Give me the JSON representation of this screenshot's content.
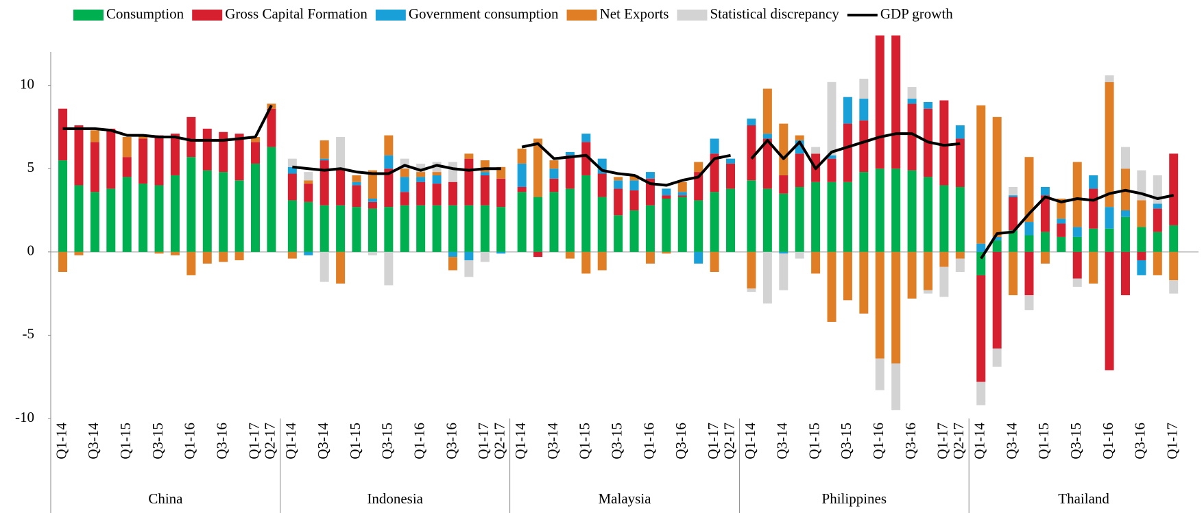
{
  "chart_data": {
    "type": "bar",
    "ylim": [
      -10,
      12
    ],
    "yticks": [
      -10,
      -5,
      0,
      5,
      10
    ],
    "groups": [
      {
        "name": "China",
        "categories": [
          "Q1-14",
          null,
          "Q3-14",
          null,
          "Q1-15",
          null,
          "Q3-15",
          null,
          "Q1-16",
          null,
          "Q3-16",
          null,
          "Q1-17",
          "Q2-17"
        ]
      },
      {
        "name": "Indonesia",
        "categories": [
          "Q1-14",
          null,
          "Q3-14",
          null,
          "Q1-15",
          null,
          "Q3-15",
          null,
          "Q1-16",
          null,
          "Q3-16",
          null,
          "Q1-17",
          "Q2-17"
        ]
      },
      {
        "name": "Malaysia",
        "categories": [
          "Q1-14",
          null,
          "Q3-14",
          null,
          "Q1-15",
          null,
          "Q3-15",
          null,
          "Q1-16",
          null,
          "Q3-16",
          null,
          "Q1-17",
          "Q2-17"
        ]
      },
      {
        "name": "Philippines",
        "categories": [
          "Q1-14",
          null,
          "Q3-14",
          null,
          "Q1-15",
          null,
          "Q3-15",
          null,
          "Q1-16",
          null,
          "Q3-16",
          null,
          "Q1-17",
          "Q2-17"
        ]
      },
      {
        "name": "Thailand",
        "categories": [
          "Q1-14",
          null,
          "Q3-14",
          null,
          "Q1-15",
          null,
          "Q3-15",
          null,
          "Q1-16",
          null,
          "Q3-16",
          null,
          "Q1-17"
        ]
      }
    ],
    "series": [
      {
        "name": "Consumption",
        "color": "#00b050",
        "values": [
          [
            5.5,
            4.0,
            3.6,
            3.8,
            4.5,
            4.1,
            4.0,
            4.6,
            5.7,
            4.9,
            4.8,
            4.3,
            5.3,
            6.3
          ],
          [
            3.1,
            3.0,
            2.8,
            2.8,
            2.7,
            2.6,
            2.7,
            2.8,
            2.8,
            2.8,
            2.8,
            2.8,
            2.8,
            2.7
          ],
          [
            3.6,
            3.3,
            3.6,
            3.8,
            4.6,
            3.3,
            2.2,
            2.5,
            2.8,
            3.2,
            3.3,
            3.1,
            3.6,
            3.8
          ],
          [
            4.3,
            3.8,
            3.5,
            3.9,
            4.2,
            4.2,
            4.2,
            4.8,
            5.0,
            5.0,
            4.9,
            4.5,
            4.0,
            3.9
          ],
          [
            -1.4,
            0.7,
            1.3,
            1.0,
            1.2,
            0.9,
            0.9,
            1.4,
            1.4,
            2.1,
            1.5,
            1.2,
            1.6
          ]
        ]
      },
      {
        "name": "Gross Capital Formation",
        "color": "#d7202f",
        "values": [
          [
            3.1,
            3.6,
            3.0,
            3.6,
            1.2,
            2.7,
            3.0,
            2.5,
            2.4,
            2.5,
            2.4,
            2.8,
            1.3,
            2.3
          ],
          [
            1.6,
            1.1,
            2.7,
            2.2,
            1.3,
            0.4,
            2.3,
            0.8,
            1.4,
            1.3,
            1.4,
            2.8,
            1.8,
            1.7
          ],
          [
            0.3,
            -0.3,
            0.8,
            2.0,
            2.0,
            1.4,
            1.6,
            1.2,
            1.6,
            0.2,
            0.1,
            1.7,
            2.3,
            1.5
          ],
          [
            3.3,
            3.0,
            1.1,
            2.0,
            1.7,
            1.4,
            3.5,
            3.1,
            8.0,
            8.0,
            4.0,
            4.1,
            5.1,
            2.9
          ],
          [
            -6.4,
            -5.8,
            2.0,
            -2.6,
            2.2,
            0.8,
            -1.6,
            2.4,
            -7.1,
            -2.6,
            -0.5,
            1.4,
            4.3
          ]
        ]
      },
      {
        "name": "Government consumption",
        "color": "#1aa0d8",
        "values": [
          [
            0,
            0,
            0,
            0,
            0,
            0,
            0,
            0,
            0,
            0,
            0,
            0,
            0,
            0
          ],
          [
            0.4,
            -0.2,
            0.1,
            0,
            0.2,
            0.2,
            0.8,
            0.9,
            0.3,
            0.5,
            -0.3,
            -0.5,
            0.2,
            -0.1
          ],
          [
            1.4,
            0,
            0.6,
            0.2,
            0.5,
            0.9,
            0.5,
            0.6,
            0.4,
            0.4,
            0.2,
            -0.7,
            0.9,
            0.3
          ],
          [
            0.4,
            0.3,
            -0.1,
            0.8,
            0,
            0.2,
            1.6,
            1.3,
            0,
            0,
            0.3,
            0.4,
            0,
            0.8
          ],
          [
            0.5,
            0.2,
            0.1,
            0.8,
            0.5,
            0.3,
            0.6,
            0.8,
            1.3,
            0.4,
            -0.9,
            0.3,
            0
          ]
        ]
      },
      {
        "name": "Net Exports",
        "color": "#e07e26",
        "values": [
          [
            -1.2,
            -0.2,
            0.7,
            0,
            1.2,
            0.2,
            -0.1,
            -0.2,
            -1.4,
            -0.7,
            -0.6,
            -0.5,
            0.3,
            0.3
          ],
          [
            -0.4,
            0.2,
            1.1,
            -1.9,
            0.4,
            1.7,
            1.2,
            0.5,
            0.3,
            0.2,
            -0.8,
            0.3,
            0.7,
            0.7
          ],
          [
            0.9,
            3.5,
            0.5,
            -0.4,
            -1.3,
            -1.1,
            0.2,
            0.3,
            -0.7,
            -0.1,
            0.6,
            0.6,
            -1.2,
            0
          ],
          [
            -2.2,
            2.7,
            3.1,
            0.3,
            -1.3,
            -4.2,
            -2.9,
            -3.7,
            -6.4,
            -6.7,
            -2.8,
            -2.3,
            -0.9,
            -0.4
          ],
          [
            8.3,
            7.2,
            -2.6,
            3.9,
            -0.7,
            1.2,
            3.9,
            -1.9,
            7.5,
            2.5,
            1.6,
            -1.4,
            -1.7
          ]
        ]
      },
      {
        "name": "Statistical discrepancy",
        "color": "#d3d3d3",
        "values": [
          [
            0,
            0,
            0,
            0,
            0,
            0,
            0,
            0,
            0,
            0,
            0,
            0,
            0,
            0
          ],
          [
            0.5,
            0.5,
            -1.8,
            1.9,
            0,
            -0.2,
            -2.0,
            0.6,
            0.5,
            0.6,
            1.2,
            -1.0,
            -0.6,
            0
          ],
          [
            0,
            0,
            0,
            0,
            0,
            0,
            0,
            0,
            0,
            0,
            0,
            0,
            0,
            0
          ],
          [
            -0.2,
            -3.1,
            -2.2,
            -0.4,
            0.4,
            4.4,
            0,
            1.2,
            -1.9,
            -2.8,
            0.7,
            -0.2,
            -1.8,
            -0.8
          ],
          [
            -1.4,
            -1.1,
            0.5,
            -0.9,
            0,
            0,
            -0.5,
            0,
            0.4,
            1.3,
            1.8,
            1.7,
            -0.8
          ]
        ]
      },
      {
        "name": "GDP growth",
        "color": "#000000",
        "type": "line",
        "values": [
          [
            7.4,
            7.4,
            7.4,
            7.3,
            7.0,
            7.0,
            6.9,
            6.9,
            6.7,
            6.7,
            6.7,
            6.8,
            6.9,
            8.8
          ],
          [
            5.1,
            5.0,
            4.9,
            5.0,
            4.8,
            4.7,
            4.7,
            5.2,
            4.9,
            5.2,
            5.0,
            4.9,
            5.0,
            5.0
          ],
          [
            6.3,
            6.5,
            5.6,
            5.7,
            5.8,
            4.9,
            4.7,
            4.6,
            4.1,
            4.0,
            4.3,
            4.5,
            5.6,
            5.8
          ],
          [
            5.6,
            6.7,
            5.6,
            6.6,
            5.0,
            6.0,
            6.3,
            6.6,
            6.9,
            7.1,
            7.1,
            6.6,
            6.4,
            6.5
          ],
          [
            -0.4,
            1.1,
            1.2,
            2.3,
            3.3,
            3.0,
            3.2,
            3.1,
            3.5,
            3.7,
            3.5,
            3.2,
            3.4
          ]
        ]
      }
    ]
  }
}
